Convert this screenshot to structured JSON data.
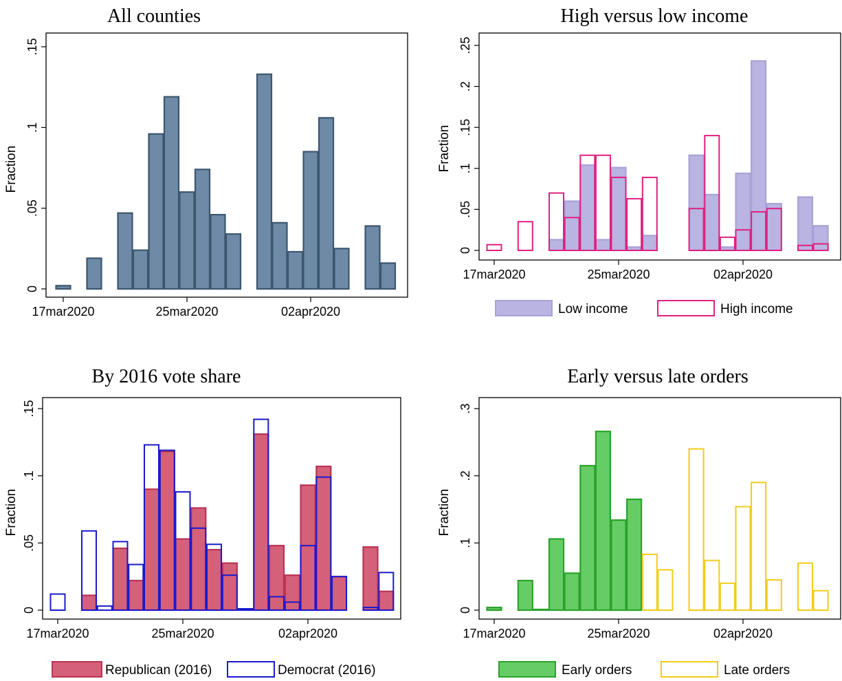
{
  "chart_data": [
    {
      "type": "bar",
      "title": "All counties",
      "ylabel": "Fraction",
      "x_tick_labels": [
        "17mar2020",
        "25mar2020",
        "02apr2020"
      ],
      "y_tick_labels": [
        "0",
        ".05",
        ".1",
        ".15"
      ],
      "ylim": [
        0,
        0.15
      ],
      "xlim": [
        "2020-03-17",
        "2020-04-08"
      ],
      "series": [
        {
          "color": "#6f8aa6",
          "edge": "#3d566f",
          "style": "filled",
          "x": [
            "2020-03-17",
            "2020-03-19",
            "2020-03-20",
            "2020-03-21",
            "2020-03-22",
            "2020-03-23",
            "2020-03-24",
            "2020-03-25",
            "2020-03-26",
            "2020-03-27",
            "2020-03-28",
            "2020-03-29",
            "2020-03-30",
            "2020-03-31",
            "2020-04-01",
            "2020-04-02",
            "2020-04-03",
            "2020-04-04",
            "2020-04-06",
            "2020-04-07"
          ],
          "values": [
            0.002,
            0.019,
            0.0,
            0.047,
            0.024,
            0.096,
            0.119,
            0.06,
            0.074,
            0.046,
            0.034,
            0.0,
            0.133,
            0.041,
            0.023,
            0.085,
            0.106,
            0.025,
            0.039,
            0.016
          ]
        }
      ]
    },
    {
      "type": "bar",
      "title": "High versus low income",
      "ylabel": "Fraction",
      "x_tick_labels": [
        "17mar2020",
        "25mar2020",
        "02apr2020"
      ],
      "y_tick_labels": [
        "0",
        ".05",
        ".1",
        ".15",
        ".2",
        ".25"
      ],
      "ylim": [
        0,
        0.25
      ],
      "xlim": [
        "2020-03-17",
        "2020-04-08"
      ],
      "legend": {
        "position": "bottom"
      },
      "series": [
        {
          "name": "Low income",
          "color": "#b9b4e2",
          "edge": "#a9a2d8",
          "style": "filled",
          "x": [
            "2020-03-21",
            "2020-03-22",
            "2020-03-23",
            "2020-03-24",
            "2020-03-25",
            "2020-03-26",
            "2020-03-27",
            "2020-03-30",
            "2020-03-31",
            "2020-04-01",
            "2020-04-02",
            "2020-04-03",
            "2020-04-04",
            "2020-04-06",
            "2020-04-07"
          ],
          "values": [
            0.013,
            0.06,
            0.104,
            0.013,
            0.101,
            0.004,
            0.018,
            0.116,
            0.068,
            0.004,
            0.094,
            0.231,
            0.057,
            0.065,
            0.03
          ]
        },
        {
          "name": "High income",
          "color": "none",
          "edge": "#e0207f",
          "style": "outline",
          "x": [
            "2020-03-17",
            "2020-03-19",
            "2020-03-20",
            "2020-03-21",
            "2020-03-22",
            "2020-03-23",
            "2020-03-24",
            "2020-03-25",
            "2020-03-26",
            "2020-03-27",
            "2020-03-30",
            "2020-03-31",
            "2020-04-01",
            "2020-04-02",
            "2020-04-03",
            "2020-04-04",
            "2020-04-06",
            "2020-04-07"
          ],
          "values": [
            0.007,
            0.035,
            0.0,
            0.07,
            0.04,
            0.116,
            0.116,
            0.089,
            0.063,
            0.089,
            0.051,
            0.14,
            0.016,
            0.025,
            0.047,
            0.051,
            0.006,
            0.008
          ]
        }
      ]
    },
    {
      "type": "bar",
      "title": "By 2016 vote share",
      "ylabel": "Fraction",
      "x_tick_labels": [
        "17mar2020",
        "25mar2020",
        "02apr2020"
      ],
      "y_tick_labels": [
        "0",
        ".05",
        ".1",
        ".15"
      ],
      "ylim": [
        0,
        0.15
      ],
      "xlim": [
        "2020-03-17",
        "2020-04-08"
      ],
      "legend": {
        "position": "bottom"
      },
      "series": [
        {
          "name": "Republican (2016)",
          "color": "#d5607a",
          "edge": "#b83454",
          "style": "filled",
          "x": [
            "2020-03-19",
            "2020-03-21",
            "2020-03-22",
            "2020-03-23",
            "2020-03-24",
            "2020-03-25",
            "2020-03-26",
            "2020-03-27",
            "2020-03-28",
            "2020-03-30",
            "2020-03-31",
            "2020-04-01",
            "2020-04-02",
            "2020-04-03",
            "2020-04-04",
            "2020-04-06",
            "2020-04-07"
          ],
          "values": [
            0.011,
            0.046,
            0.022,
            0.09,
            0.118,
            0.053,
            0.076,
            0.045,
            0.035,
            0.131,
            0.048,
            0.026,
            0.093,
            0.107,
            0.025,
            0.047,
            0.014
          ]
        },
        {
          "name": "Democrat (2016)",
          "color": "none",
          "edge": "#1a1acc",
          "style": "outline",
          "x": [
            "2020-03-17",
            "2020-03-19",
            "2020-03-20",
            "2020-03-21",
            "2020-03-22",
            "2020-03-23",
            "2020-03-24",
            "2020-03-25",
            "2020-03-26",
            "2020-03-27",
            "2020-03-28",
            "2020-03-29",
            "2020-03-30",
            "2020-03-31",
            "2020-04-01",
            "2020-04-02",
            "2020-04-03",
            "2020-04-04",
            "2020-04-06",
            "2020-04-07"
          ],
          "values": [
            0.012,
            0.059,
            0.003,
            0.051,
            0.034,
            0.123,
            0.119,
            0.088,
            0.061,
            0.049,
            0.026,
            0.001,
            0.142,
            0.01,
            0.006,
            0.048,
            0.099,
            0.025,
            0.002,
            0.028
          ]
        }
      ]
    },
    {
      "type": "bar",
      "title": "Early versus late orders",
      "ylabel": "Fraction",
      "x_tick_labels": [
        "17mar2020",
        "25mar2020",
        "02apr2020"
      ],
      "y_tick_labels": [
        "0",
        ".1",
        ".2",
        ".3"
      ],
      "ylim": [
        0,
        0.3
      ],
      "xlim": [
        "2020-03-17",
        "2020-04-08"
      ],
      "legend": {
        "position": "bottom"
      },
      "series": [
        {
          "name": "Early orders",
          "color": "#66cc66",
          "edge": "#2aa22a",
          "style": "filled",
          "x": [
            "2020-03-17",
            "2020-03-19",
            "2020-03-20",
            "2020-03-21",
            "2020-03-22",
            "2020-03-23",
            "2020-03-24",
            "2020-03-25",
            "2020-03-26"
          ],
          "values": [
            0.004,
            0.044,
            0.001,
            0.106,
            0.055,
            0.215,
            0.266,
            0.134,
            0.165
          ]
        },
        {
          "name": "Late orders",
          "color": "none",
          "edge": "#f2cc1a",
          "style": "outline",
          "x": [
            "2020-03-27",
            "2020-03-28",
            "2020-03-29",
            "2020-03-30",
            "2020-03-31",
            "2020-04-01",
            "2020-04-02",
            "2020-04-03",
            "2020-04-04",
            "2020-04-06",
            "2020-04-07"
          ],
          "values": [
            0.083,
            0.06,
            0.0,
            0.24,
            0.074,
            0.04,
            0.154,
            0.19,
            0.045,
            0.07,
            0.029
          ]
        }
      ]
    }
  ]
}
